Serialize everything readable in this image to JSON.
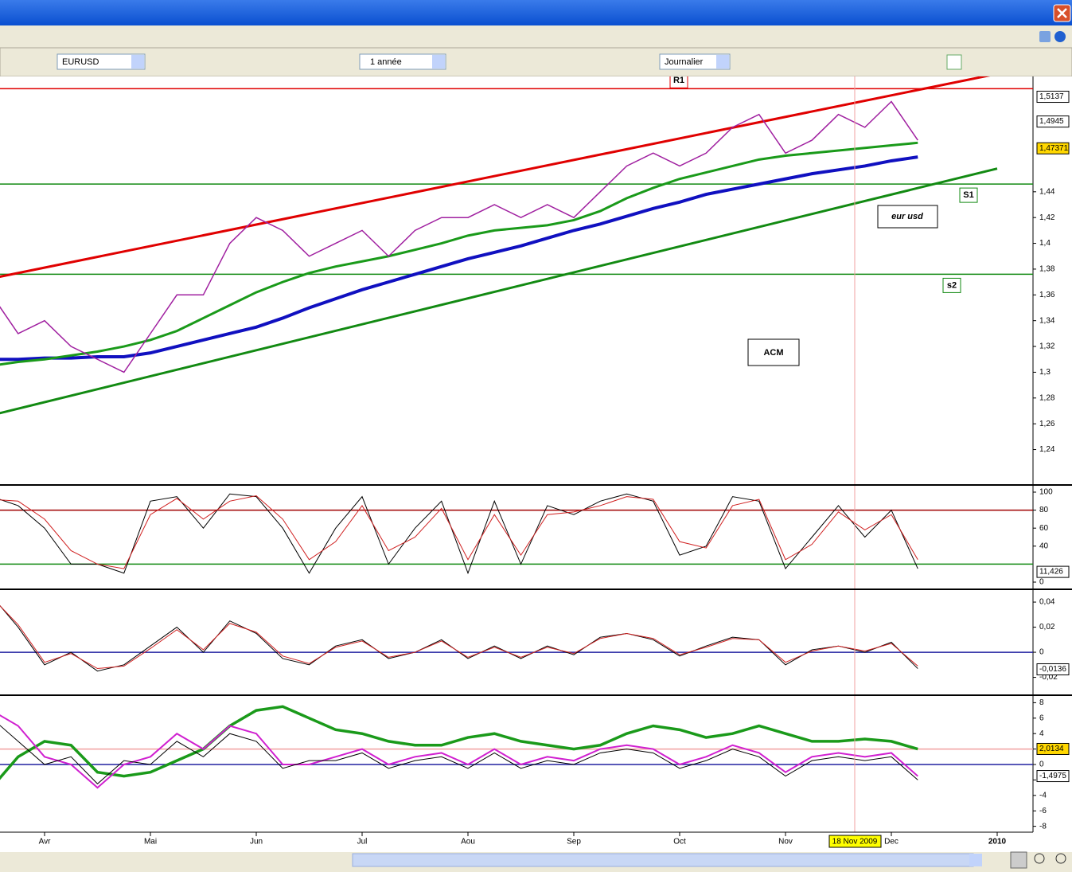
{
  "toolbar": {
    "symbol": "EURUSD",
    "period": "1 année",
    "interval": "Journalier"
  },
  "cursor_date": "18 Nov 2009",
  "chart_data": [
    {
      "type": "line",
      "categories": [
        null,
        null,
        "Avr",
        null,
        null,
        null,
        "Mai",
        null,
        null,
        null,
        "Jun",
        null,
        null,
        null,
        "Jul",
        null,
        null,
        null,
        "Aou",
        null,
        null,
        null,
        "Sep",
        null,
        null,
        null,
        "Oct",
        null,
        null,
        null,
        "Nov",
        null,
        null,
        null,
        "Dec",
        null,
        null,
        null,
        "2010"
      ],
      "ylim": [
        1.215,
        1.527
      ],
      "yticks": [
        {
          "value": 1.24,
          "label": "1,24"
        },
        {
          "value": 1.26,
          "label": "1,26"
        },
        {
          "value": 1.28,
          "label": "1,28"
        },
        {
          "value": 1.3,
          "label": "1,3"
        },
        {
          "value": 1.32,
          "label": "1,32"
        },
        {
          "value": 1.34,
          "label": "1,34"
        },
        {
          "value": 1.36,
          "label": "1,36"
        },
        {
          "value": 1.38,
          "label": "1,38"
        },
        {
          "value": 1.4,
          "label": "1,4"
        },
        {
          "value": 1.42,
          "label": "1,42"
        },
        {
          "value": 1.44,
          "label": "1,44"
        }
      ],
      "series": [
        {
          "color": "#1010c0",
          "width": 4,
          "values": [
            1.31,
            1.31,
            1.311,
            1.311,
            1.312,
            1.312,
            1.315,
            1.32,
            1.325,
            1.33,
            1.335,
            1.342,
            1.35,
            1.357,
            1.364,
            1.37,
            1.376,
            1.382,
            1.388,
            1.393,
            1.398,
            1.404,
            1.41,
            1.415,
            1.421,
            1.427,
            1.432,
            1.438,
            1.442,
            1.446,
            1.45,
            1.454,
            1.457,
            1.46,
            1.464,
            1.467,
            null,
            null,
            null
          ]
        },
        {
          "color": "#1a9a1a",
          "width": 3,
          "values": [
            1.305,
            1.308,
            1.31,
            1.313,
            1.316,
            1.32,
            1.325,
            1.332,
            1.342,
            1.352,
            1.362,
            1.37,
            1.377,
            1.382,
            1.386,
            1.39,
            1.395,
            1.4,
            1.406,
            1.41,
            1.412,
            1.414,
            1.418,
            1.425,
            1.435,
            1.443,
            1.45,
            1.455,
            1.46,
            1.465,
            1.468,
            1.47,
            1.472,
            1.474,
            1.476,
            1.478,
            null,
            null,
            null
          ]
        },
        {
          "color": "#a020a0",
          "width": 1.5,
          "values": [
            1.36,
            1.33,
            1.34,
            1.32,
            1.31,
            1.3,
            1.33,
            1.36,
            1.36,
            1.4,
            1.42,
            1.41,
            1.39,
            1.4,
            1.41,
            1.39,
            1.41,
            1.42,
            1.42,
            1.43,
            1.42,
            1.43,
            1.42,
            1.44,
            1.46,
            1.47,
            1.46,
            1.47,
            1.49,
            1.5,
            1.47,
            1.48,
            1.5,
            1.49,
            1.51,
            1.48,
            null,
            null,
            null
          ]
        }
      ],
      "trendlines": [
        {
          "color": "#e00000",
          "values": [
            1.3728,
            1.5315
          ]
        },
        {
          "color": "#128a12",
          "values": [
            1.2667,
            1.458
          ]
        }
      ],
      "levels": [
        {
          "value": 1.52,
          "label": "R1",
          "color": "#e00000"
        },
        {
          "value": 1.446,
          "label": "S1",
          "color": "#128a12"
        },
        {
          "value": 1.376,
          "label": "s2",
          "color": "#128a12"
        }
      ],
      "price_tags": [
        {
          "value": 1.5137,
          "label": "1,5137",
          "color": "#c00000",
          "bg": "#ffffff"
        },
        {
          "value": 1.4945,
          "label": "1,4945",
          "color": "#c00000",
          "bg": "#ffffff"
        },
        {
          "value": 1.47371,
          "label": "1,47371",
          "color": "#000000",
          "bg": "#ffd700"
        }
      ],
      "annotations": [
        "eur usd",
        "ACM"
      ]
    },
    {
      "type": "line",
      "ylim": [
        -5.3,
        105.3
      ],
      "yticks": [
        0,
        40,
        60,
        80,
        100
      ],
      "levels": [
        {
          "value": 80,
          "color": "#a00000"
        },
        {
          "value": 20,
          "color": "#128a12"
        }
      ],
      "series": [
        {
          "color": "#000000",
          "width": 1,
          "values": [
            95,
            85,
            60,
            20,
            20,
            10,
            90,
            95,
            60,
            98,
            95,
            60,
            10,
            60,
            95,
            20,
            60,
            90,
            10,
            90,
            20,
            85,
            75,
            90,
            98,
            90,
            30,
            40,
            95,
            90,
            15,
            50,
            85,
            50,
            80,
            15,
            null,
            null,
            null
          ]
        },
        {
          "color": "#d02020",
          "width": 1,
          "values": [
            92,
            90,
            70,
            35,
            20,
            15,
            75,
            93,
            70,
            90,
            96,
            70,
            25,
            45,
            85,
            35,
            50,
            82,
            25,
            75,
            30,
            75,
            78,
            85,
            95,
            92,
            45,
            38,
            85,
            92,
            25,
            42,
            78,
            58,
            75,
            25,
            null,
            null,
            null
          ]
        }
      ],
      "price_tags": [
        {
          "value": 11.426,
          "label": "11,426",
          "color": "#000000",
          "bg": "#ffffff"
        }
      ]
    },
    {
      "type": "line",
      "ylim": [
        -0.0317,
        0.0483
      ],
      "yticks": [
        {
          "value": -0.02,
          "label": "-0,02"
        },
        0,
        {
          "value": 0.02,
          "label": "0,02"
        },
        {
          "value": 0.04,
          "label": "0,04"
        }
      ],
      "levels": [
        {
          "value": 0,
          "color": "#2020a0"
        }
      ],
      "series": [
        {
          "color": "#000000",
          "width": 1,
          "values": [
            0.045,
            0.02,
            -0.01,
            0.0,
            -0.015,
            -0.01,
            0.005,
            0.02,
            0.0,
            0.025,
            0.015,
            -0.005,
            -0.01,
            0.005,
            0.01,
            -0.005,
            0.0,
            0.01,
            -0.005,
            0.005,
            -0.005,
            0.005,
            -0.002,
            0.012,
            0.015,
            0.01,
            -0.003,
            0.005,
            0.012,
            0.01,
            -0.01,
            0.002,
            0.005,
            0.0,
            0.008,
            -0.013,
            null,
            null,
            null
          ]
        },
        {
          "color": "#d02020",
          "width": 1,
          "values": [
            0.044,
            0.022,
            -0.008,
            -0.001,
            -0.013,
            -0.011,
            0.003,
            0.018,
            0.002,
            0.023,
            0.016,
            -0.003,
            -0.009,
            0.004,
            0.009,
            -0.004,
            0.0,
            0.009,
            -0.004,
            0.004,
            -0.004,
            0.004,
            -0.001,
            0.011,
            0.015,
            0.011,
            -0.002,
            0.004,
            0.011,
            0.01,
            -0.008,
            0.001,
            0.005,
            0.001,
            0.007,
            -0.011,
            null,
            null,
            null
          ]
        }
      ],
      "price_tags": [
        {
          "value": -0.0136,
          "label": "-0,0136",
          "color": "#000000",
          "bg": "#ffffff"
        }
      ]
    },
    {
      "type": "line",
      "ylim": [
        -8.76,
        8.66
      ],
      "yticks": [
        -8,
        -6,
        -4,
        -2,
        0,
        2,
        4,
        6,
        8
      ],
      "levels": [
        {
          "value": 0,
          "color": "#2020a0"
        },
        {
          "value": 2,
          "color": "#f0a0a0"
        }
      ],
      "series": [
        {
          "color": "#1a9a1a",
          "width": 3.5,
          "values": [
            -3,
            1,
            3,
            2.5,
            -1,
            -1.5,
            -1,
            0.5,
            2,
            5,
            7,
            7.5,
            6,
            4.5,
            4,
            3,
            2.5,
            2.5,
            3.5,
            4,
            3,
            2.5,
            2,
            2.5,
            4,
            5,
            4.5,
            3.5,
            4,
            5,
            4,
            3,
            3,
            3.3,
            3,
            2,
            null,
            null,
            null
          ]
        },
        {
          "color": "#d020d0",
          "width": 2,
          "values": [
            7,
            5,
            1,
            0,
            -3,
            0,
            1,
            4,
            2,
            5,
            4,
            0,
            0,
            1,
            2,
            0,
            1,
            1.5,
            0,
            2,
            0,
            1,
            0.5,
            2,
            2.5,
            2,
            0,
            1,
            2.5,
            1.5,
            -1,
            1,
            1.5,
            1,
            1.5,
            -1.5,
            null,
            null,
            null
          ]
        },
        {
          "color": "#000000",
          "width": 1,
          "values": [
            6,
            3,
            0,
            1,
            -2.5,
            0.5,
            0,
            3,
            1,
            4,
            3,
            -0.5,
            0.5,
            0.5,
            1.5,
            -0.5,
            0.5,
            1,
            -0.5,
            1.5,
            -0.5,
            0.5,
            0,
            1.5,
            2,
            1.5,
            -0.5,
            0.5,
            2,
            1,
            -1.5,
            0.5,
            1,
            0.5,
            1,
            -2,
            null,
            null,
            null
          ]
        }
      ],
      "price_tags": [
        {
          "value": 2.0134,
          "label": "2,0134",
          "color": "#000000",
          "bg": "#ffd700"
        },
        {
          "value": -1.4975,
          "label": "-1,4975",
          "color": "#c00000",
          "bg": "#ffffff"
        }
      ]
    }
  ]
}
